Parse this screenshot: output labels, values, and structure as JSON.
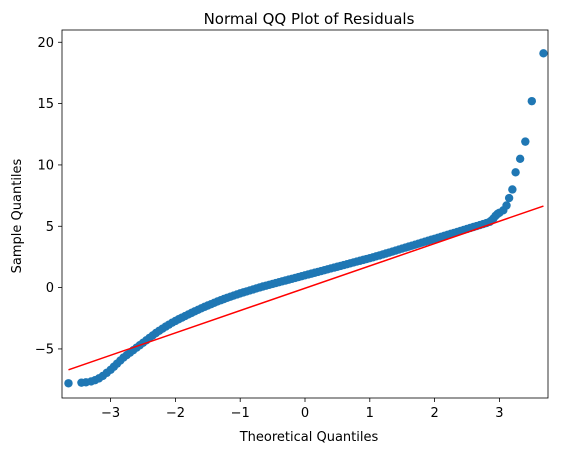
{
  "chart_data": {
    "type": "scatter",
    "title": "Normal QQ Plot of Residuals",
    "xlabel": "Theoretical Quantiles",
    "ylabel": "Sample Quantiles",
    "xlim": [
      -3.75,
      3.75
    ],
    "ylim": [
      -9.0,
      21.0
    ],
    "xticks": [
      -3,
      -2,
      -1,
      0,
      1,
      2,
      3
    ],
    "yticks": [
      -5,
      0,
      5,
      10,
      15,
      20
    ],
    "grid": false,
    "colors": {
      "points": "#1f77b4",
      "line": "#ff0000"
    },
    "series": [
      {
        "kind": "points",
        "x": [
          -3.65,
          -3.45,
          -3.38,
          -3.3,
          -3.24,
          -3.18,
          -3.12,
          -3.06,
          -3.0,
          -2.95,
          -2.9,
          -2.85,
          -2.8,
          -2.75,
          -2.7,
          -2.65,
          -2.6,
          -2.55,
          -2.5,
          -2.45,
          -2.4,
          -2.35,
          -2.3,
          -2.25,
          -2.2,
          -2.15,
          -2.1,
          -2.05,
          -2.0,
          -1.95,
          -1.9,
          -1.85,
          -1.8,
          -1.75,
          -1.7,
          -1.65,
          -1.6,
          -1.55,
          -1.5,
          -1.45,
          -1.4,
          -1.35,
          -1.3,
          -1.25,
          -1.2,
          -1.15,
          -1.1,
          -1.05,
          -1.0,
          -0.95,
          -0.9,
          -0.85,
          -0.8,
          -0.75,
          -0.7,
          -0.65,
          -0.6,
          -0.55,
          -0.5,
          -0.45,
          -0.4,
          -0.35,
          -0.3,
          -0.25,
          -0.2,
          -0.15,
          -0.1,
          -0.05,
          0.0,
          0.05,
          0.1,
          0.15,
          0.2,
          0.25,
          0.3,
          0.35,
          0.4,
          0.45,
          0.5,
          0.55,
          0.6,
          0.65,
          0.7,
          0.75,
          0.8,
          0.85,
          0.9,
          0.95,
          1.0,
          1.05,
          1.1,
          1.15,
          1.2,
          1.25,
          1.3,
          1.35,
          1.4,
          1.45,
          1.5,
          1.55,
          1.6,
          1.65,
          1.7,
          1.75,
          1.8,
          1.85,
          1.9,
          1.95,
          2.0,
          2.05,
          2.1,
          2.15,
          2.2,
          2.25,
          2.3,
          2.35,
          2.4,
          2.45,
          2.5,
          2.55,
          2.6,
          2.65,
          2.7,
          2.75,
          2.8,
          2.85,
          2.88,
          2.91,
          2.94,
          2.97,
          3.0,
          3.06,
          3.11,
          3.15,
          3.2,
          3.25,
          3.32,
          3.4,
          3.5,
          3.68
        ],
        "y": [
          -7.8,
          -7.75,
          -7.72,
          -7.65,
          -7.55,
          -7.4,
          -7.2,
          -6.95,
          -6.7,
          -6.45,
          -6.2,
          -5.95,
          -5.7,
          -5.5,
          -5.3,
          -5.1,
          -4.9,
          -4.7,
          -4.5,
          -4.3,
          -4.1,
          -3.9,
          -3.7,
          -3.52,
          -3.35,
          -3.18,
          -3.02,
          -2.86,
          -2.72,
          -2.58,
          -2.45,
          -2.32,
          -2.19,
          -2.06,
          -1.93,
          -1.81,
          -1.69,
          -1.57,
          -1.46,
          -1.35,
          -1.24,
          -1.13,
          -1.03,
          -0.93,
          -0.83,
          -0.74,
          -0.65,
          -0.56,
          -0.47,
          -0.39,
          -0.31,
          -0.23,
          -0.15,
          -0.07,
          0.01,
          0.09,
          0.16,
          0.23,
          0.3,
          0.37,
          0.44,
          0.51,
          0.58,
          0.65,
          0.72,
          0.79,
          0.86,
          0.93,
          1.0,
          1.07,
          1.14,
          1.21,
          1.28,
          1.35,
          1.42,
          1.49,
          1.56,
          1.63,
          1.7,
          1.77,
          1.84,
          1.91,
          1.98,
          2.05,
          2.12,
          2.19,
          2.26,
          2.33,
          2.4,
          2.47,
          2.55,
          2.62,
          2.7,
          2.78,
          2.86,
          2.94,
          3.02,
          3.1,
          3.18,
          3.26,
          3.34,
          3.42,
          3.5,
          3.58,
          3.66,
          3.74,
          3.82,
          3.9,
          3.98,
          4.06,
          4.14,
          4.22,
          4.3,
          4.38,
          4.46,
          4.54,
          4.62,
          4.7,
          4.78,
          4.86,
          4.94,
          5.02,
          5.1,
          5.18,
          5.26,
          5.36,
          5.48,
          5.65,
          5.85,
          6.0,
          6.1,
          6.3,
          6.7,
          7.3,
          8.0,
          9.4,
          10.5,
          11.9,
          15.2,
          19.1
        ]
      },
      {
        "kind": "line",
        "x": [
          -3.65,
          3.68
        ],
        "y": [
          -6.7,
          6.65
        ]
      }
    ]
  }
}
